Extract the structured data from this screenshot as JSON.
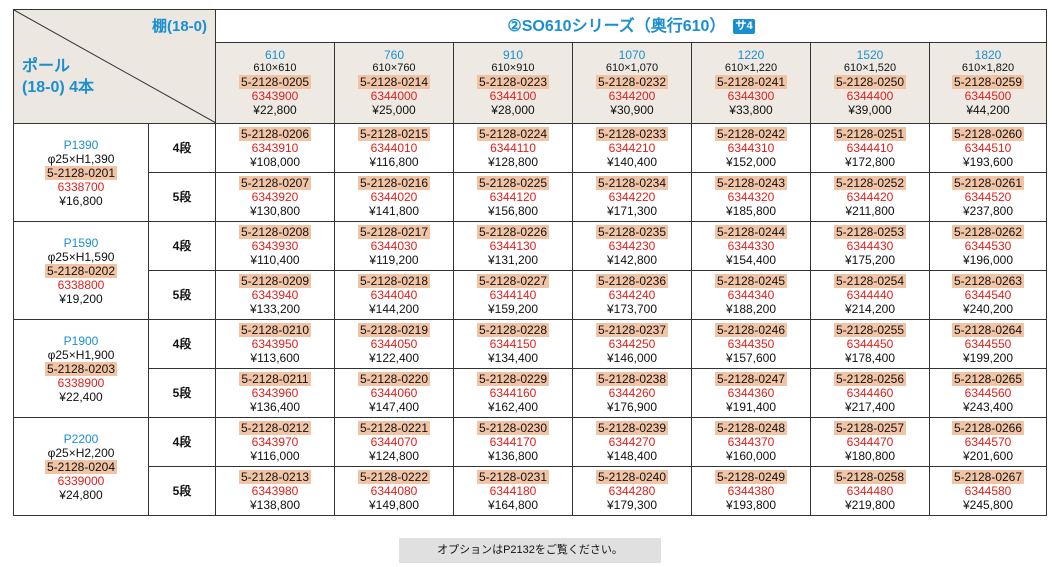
{
  "corner": {
    "shelf_label": "棚(18-0)",
    "pole_label_line1": "ポール",
    "pole_label_line2": "(18-0)  4本"
  },
  "series": {
    "title": "②SO610シリーズ（奥行610）",
    "badge": "サ4"
  },
  "columns": [
    {
      "width": "610",
      "size": "610×610",
      "code": "5-2128-0205",
      "jan": "6343900",
      "price": "¥22,800"
    },
    {
      "width": "760",
      "size": "610×760",
      "code": "5-2128-0214",
      "jan": "6344000",
      "price": "¥25,000"
    },
    {
      "width": "910",
      "size": "610×910",
      "code": "5-2128-0223",
      "jan": "6344100",
      "price": "¥28,000"
    },
    {
      "width": "1070",
      "size": "610×1,070",
      "code": "5-2128-0232",
      "jan": "6344200",
      "price": "¥30,900"
    },
    {
      "width": "1220",
      "size": "610×1,220",
      "code": "5-2128-0241",
      "jan": "6344300",
      "price": "¥33,800"
    },
    {
      "width": "1520",
      "size": "610×1,520",
      "code": "5-2128-0250",
      "jan": "6344400",
      "price": "¥39,000"
    },
    {
      "width": "1820",
      "size": "610×1,820",
      "code": "5-2128-0259",
      "jan": "6344500",
      "price": "¥44,200"
    }
  ],
  "rows": [
    {
      "pole": {
        "name": "P1390",
        "size": "φ25×H1,390",
        "code": "5-2128-0201",
        "jan": "6338700",
        "price": "¥16,800"
      },
      "tiers": [
        {
          "label": "4段",
          "cells": [
            {
              "code": "5-2128-0206",
              "jan": "6343910",
              "price": "¥108,000"
            },
            {
              "code": "5-2128-0215",
              "jan": "6344010",
              "price": "¥116,800"
            },
            {
              "code": "5-2128-0224",
              "jan": "6344110",
              "price": "¥128,800"
            },
            {
              "code": "5-2128-0233",
              "jan": "6344210",
              "price": "¥140,400"
            },
            {
              "code": "5-2128-0242",
              "jan": "6344310",
              "price": "¥152,000"
            },
            {
              "code": "5-2128-0251",
              "jan": "6344410",
              "price": "¥172,800"
            },
            {
              "code": "5-2128-0260",
              "jan": "6344510",
              "price": "¥193,600"
            }
          ]
        },
        {
          "label": "5段",
          "cells": [
            {
              "code": "5-2128-0207",
              "jan": "6343920",
              "price": "¥130,800"
            },
            {
              "code": "5-2128-0216",
              "jan": "6344020",
              "price": "¥141,800"
            },
            {
              "code": "5-2128-0225",
              "jan": "6344120",
              "price": "¥156,800"
            },
            {
              "code": "5-2128-0234",
              "jan": "6344220",
              "price": "¥171,300"
            },
            {
              "code": "5-2128-0243",
              "jan": "6344320",
              "price": "¥185,800"
            },
            {
              "code": "5-2128-0252",
              "jan": "6344420",
              "price": "¥211,800"
            },
            {
              "code": "5-2128-0261",
              "jan": "6344520",
              "price": "¥237,800"
            }
          ]
        }
      ]
    },
    {
      "pole": {
        "name": "P1590",
        "size": "φ25×H1,590",
        "code": "5-2128-0202",
        "jan": "6338800",
        "price": "¥19,200"
      },
      "tiers": [
        {
          "label": "4段",
          "cells": [
            {
              "code": "5-2128-0208",
              "jan": "6343930",
              "price": "¥110,400"
            },
            {
              "code": "5-2128-0217",
              "jan": "6344030",
              "price": "¥119,200"
            },
            {
              "code": "5-2128-0226",
              "jan": "6344130",
              "price": "¥131,200"
            },
            {
              "code": "5-2128-0235",
              "jan": "6344230",
              "price": "¥142,800"
            },
            {
              "code": "5-2128-0244",
              "jan": "6344330",
              "price": "¥154,400"
            },
            {
              "code": "5-2128-0253",
              "jan": "6344430",
              "price": "¥175,200"
            },
            {
              "code": "5-2128-0262",
              "jan": "6344530",
              "price": "¥196,000"
            }
          ]
        },
        {
          "label": "5段",
          "cells": [
            {
              "code": "5-2128-0209",
              "jan": "6343940",
              "price": "¥133,200"
            },
            {
              "code": "5-2128-0218",
              "jan": "6344040",
              "price": "¥144,200"
            },
            {
              "code": "5-2128-0227",
              "jan": "6344140",
              "price": "¥159,200"
            },
            {
              "code": "5-2128-0236",
              "jan": "6344240",
              "price": "¥173,700"
            },
            {
              "code": "5-2128-0245",
              "jan": "6344340",
              "price": "¥188,200"
            },
            {
              "code": "5-2128-0254",
              "jan": "6344440",
              "price": "¥214,200"
            },
            {
              "code": "5-2128-0263",
              "jan": "6344540",
              "price": "¥240,200"
            }
          ]
        }
      ]
    },
    {
      "pole": {
        "name": "P1900",
        "size": "φ25×H1,900",
        "code": "5-2128-0203",
        "jan": "6338900",
        "price": "¥22,400"
      },
      "tiers": [
        {
          "label": "4段",
          "cells": [
            {
              "code": "5-2128-0210",
              "jan": "6343950",
              "price": "¥113,600"
            },
            {
              "code": "5-2128-0219",
              "jan": "6344050",
              "price": "¥122,400"
            },
            {
              "code": "5-2128-0228",
              "jan": "6344150",
              "price": "¥134,400"
            },
            {
              "code": "5-2128-0237",
              "jan": "6344250",
              "price": "¥146,000"
            },
            {
              "code": "5-2128-0246",
              "jan": "6344350",
              "price": "¥157,600"
            },
            {
              "code": "5-2128-0255",
              "jan": "6344450",
              "price": "¥178,400"
            },
            {
              "code": "5-2128-0264",
              "jan": "6344550",
              "price": "¥199,200"
            }
          ]
        },
        {
          "label": "5段",
          "cells": [
            {
              "code": "5-2128-0211",
              "jan": "6343960",
              "price": "¥136,400"
            },
            {
              "code": "5-2128-0220",
              "jan": "6344060",
              "price": "¥147,400"
            },
            {
              "code": "5-2128-0229",
              "jan": "6344160",
              "price": "¥162,400"
            },
            {
              "code": "5-2128-0238",
              "jan": "6344260",
              "price": "¥176,900"
            },
            {
              "code": "5-2128-0247",
              "jan": "6344360",
              "price": "¥191,400"
            },
            {
              "code": "5-2128-0256",
              "jan": "6344460",
              "price": "¥217,400"
            },
            {
              "code": "5-2128-0265",
              "jan": "6344560",
              "price": "¥243,400"
            }
          ]
        }
      ]
    },
    {
      "pole": {
        "name": "P2200",
        "size": "φ25×H2,200",
        "code": "5-2128-0204",
        "jan": "6339000",
        "price": "¥24,800"
      },
      "tiers": [
        {
          "label": "4段",
          "cells": [
            {
              "code": "5-2128-0212",
              "jan": "6343970",
              "price": "¥116,000"
            },
            {
              "code": "5-2128-0221",
              "jan": "6344070",
              "price": "¥124,800"
            },
            {
              "code": "5-2128-0230",
              "jan": "6344170",
              "price": "¥136,800"
            },
            {
              "code": "5-2128-0239",
              "jan": "6344270",
              "price": "¥148,400"
            },
            {
              "code": "5-2128-0248",
              "jan": "6344370",
              "price": "¥160,000"
            },
            {
              "code": "5-2128-0257",
              "jan": "6344470",
              "price": "¥180,800"
            },
            {
              "code": "5-2128-0266",
              "jan": "6344570",
              "price": "¥201,600"
            }
          ]
        },
        {
          "label": "5段",
          "cells": [
            {
              "code": "5-2128-0213",
              "jan": "6343980",
              "price": "¥138,800"
            },
            {
              "code": "5-2128-0222",
              "jan": "6344080",
              "price": "¥149,800"
            },
            {
              "code": "5-2128-0231",
              "jan": "6344180",
              "price": "¥164,800"
            },
            {
              "code": "5-2128-0240",
              "jan": "6344280",
              "price": "¥179,300"
            },
            {
              "code": "5-2128-0249",
              "jan": "6344380",
              "price": "¥193,800"
            },
            {
              "code": "5-2128-0258",
              "jan": "6344480",
              "price": "¥219,800"
            },
            {
              "code": "5-2128-0267",
              "jan": "6344580",
              "price": "¥245,800"
            }
          ]
        }
      ]
    }
  ],
  "footnote": "オプションはP2132をご覧ください。"
}
